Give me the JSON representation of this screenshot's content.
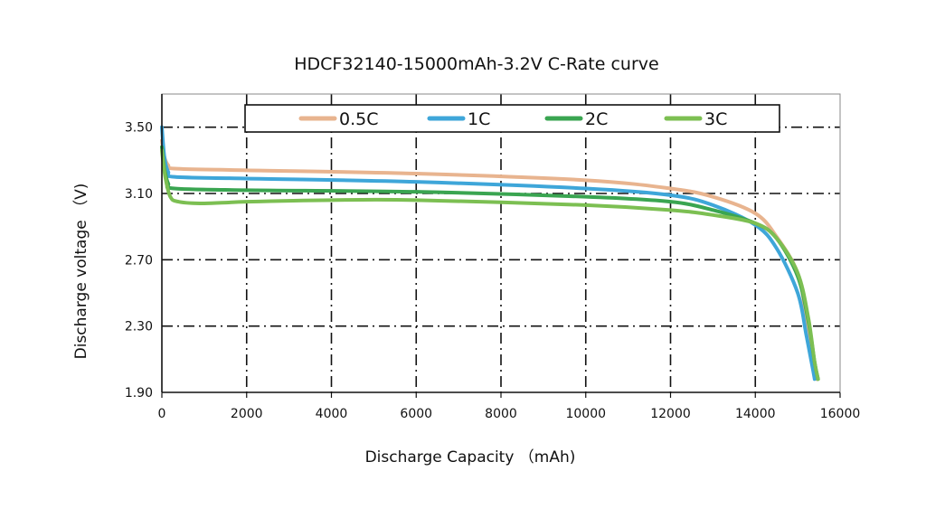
{
  "chart_data": {
    "type": "line",
    "title": "HDCF32140-15000mAh-3.2V C-Rate curve",
    "xlabel": "Discharge Capacity （mAh)",
    "ylabel": "Discharge  voltage （V)",
    "xlim": [
      0,
      16000
    ],
    "ylim": [
      1.9,
      3.7
    ],
    "xticks": [
      "0",
      "2000",
      "4000",
      "6000",
      "8000",
      "10000",
      "12000",
      "14000",
      "16000"
    ],
    "xtick_values": [
      0,
      2000,
      4000,
      6000,
      8000,
      10000,
      12000,
      14000,
      16000
    ],
    "yticks": [
      "3.50",
      "3.10",
      "2.70",
      "2.30",
      "1.90"
    ],
    "ytick_values": [
      3.5,
      3.1,
      2.7,
      2.3,
      1.9
    ],
    "grid": true,
    "legend_position": "top",
    "series": [
      {
        "name": "0.5C",
        "color": "#e8b48f",
        "x": [
          0,
          60,
          150,
          300,
          2000,
          6000,
          10000,
          12000,
          13000,
          14000,
          14500,
          15000,
          15200,
          15350,
          15450
        ],
        "y": [
          3.42,
          3.32,
          3.27,
          3.25,
          3.24,
          3.22,
          3.18,
          3.13,
          3.08,
          2.98,
          2.84,
          2.62,
          2.35,
          2.1,
          1.98
        ]
      },
      {
        "name": "1C",
        "color": "#3ea6d9",
        "x": [
          0,
          60,
          150,
          300,
          2000,
          6000,
          10000,
          12000,
          13000,
          14000,
          14500,
          15000,
          15200,
          15350,
          15400
        ],
        "y": [
          3.5,
          3.32,
          3.23,
          3.2,
          3.19,
          3.17,
          3.13,
          3.09,
          3.03,
          2.91,
          2.77,
          2.5,
          2.25,
          2.05,
          1.98
        ]
      },
      {
        "name": "2C",
        "color": "#3aa551",
        "x": [
          0,
          60,
          150,
          300,
          2000,
          6000,
          10000,
          12000,
          13000,
          14000,
          14500,
          15000,
          15250,
          15400,
          15480
        ],
        "y": [
          3.38,
          3.25,
          3.16,
          3.13,
          3.12,
          3.11,
          3.08,
          3.05,
          3.0,
          2.92,
          2.83,
          2.6,
          2.33,
          2.08,
          1.98
        ]
      },
      {
        "name": "3C",
        "color": "#7cbf52",
        "x": [
          0,
          80,
          200,
          400,
          1000,
          2000,
          4000,
          6000,
          10000,
          12000,
          13000,
          14000,
          14500,
          15000,
          15250,
          15400,
          15480
        ],
        "y": [
          3.36,
          3.2,
          3.08,
          3.05,
          3.04,
          3.05,
          3.06,
          3.06,
          3.03,
          3.0,
          2.97,
          2.92,
          2.83,
          2.62,
          2.35,
          2.08,
          1.98
        ]
      }
    ]
  }
}
